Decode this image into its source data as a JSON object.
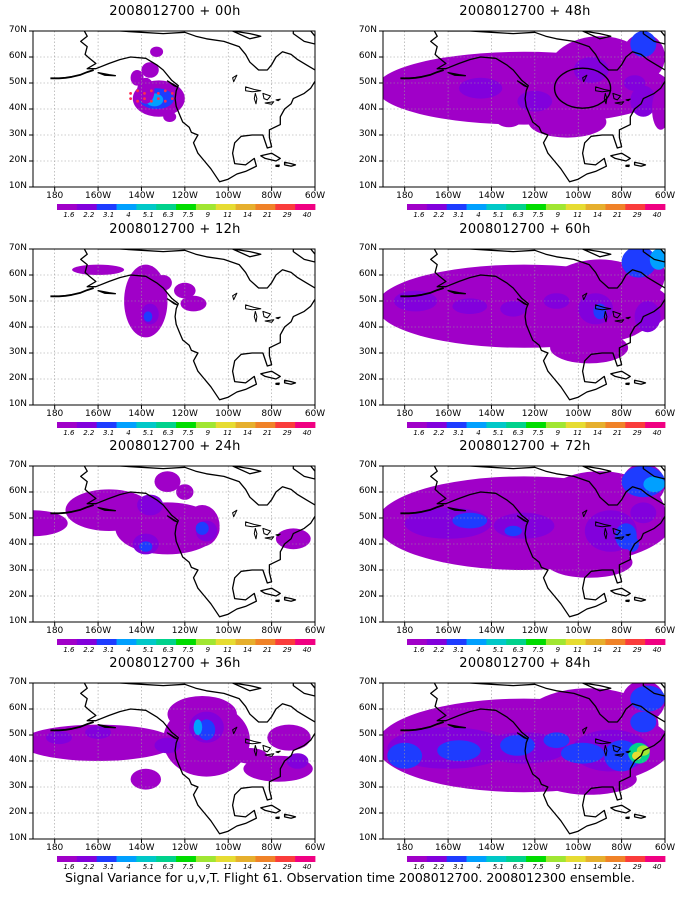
{
  "caption": "Signal Variance for u,v,T. Flight 61. Observation time 2008012700. 2008012300 ensemble.",
  "latitude_labels": [
    "70N",
    "60N",
    "50N",
    "40N",
    "30N",
    "20N",
    "10N"
  ],
  "longitude_labels": [
    "180",
    "160W",
    "140W",
    "120W",
    "100W",
    "80W",
    "60W"
  ],
  "colorbar": {
    "labels": [
      "1.6",
      "2.2",
      "3.1",
      "4",
      "5.1",
      "6.3",
      "7.5",
      "9",
      "11",
      "14",
      "21",
      "29",
      "40"
    ],
    "colors": [
      "#a000c8",
      "#8200dc",
      "#1e3cff",
      "#00a0ff",
      "#00c8c8",
      "#00d28c",
      "#00dc00",
      "#a0e632",
      "#e6dc32",
      "#e6af2d",
      "#f08228",
      "#fa3c3c",
      "#f00082"
    ]
  },
  "panels": [
    {
      "title": "2008012700 + 00h",
      "col": 0,
      "row": 0,
      "level": 0
    },
    {
      "title": "2008012700 + 48h",
      "col": 1,
      "row": 0,
      "level": 4
    },
    {
      "title": "2008012700 + 12h",
      "col": 0,
      "row": 1,
      "level": 1
    },
    {
      "title": "2008012700 + 60h",
      "col": 1,
      "row": 1,
      "level": 5
    },
    {
      "title": "2008012700 + 24h",
      "col": 0,
      "row": 2,
      "level": 2
    },
    {
      "title": "2008012700 + 72h",
      "col": 1,
      "row": 2,
      "level": 6
    },
    {
      "title": "2008012700 + 36h",
      "col": 0,
      "row": 3,
      "level": 3
    },
    {
      "title": "2008012700 + 84h",
      "col": 1,
      "row": 3,
      "level": 7
    }
  ]
}
